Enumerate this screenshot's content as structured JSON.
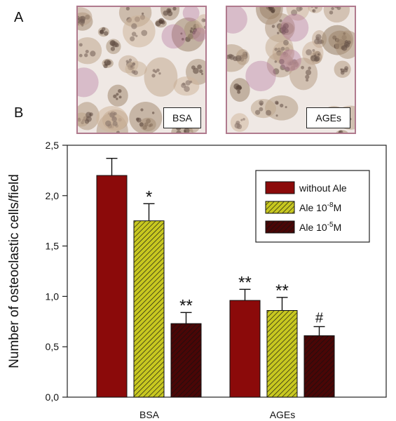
{
  "panels": {
    "a_letter": "A",
    "b_letter": "B",
    "images": [
      {
        "label": "BSA"
      },
      {
        "label": "AGEs"
      }
    ]
  },
  "colors": {
    "without_ale": "#8b0a0a",
    "ale_8": "#c8c820",
    "ale_5": "#4a0606"
  },
  "chart_data": {
    "type": "bar",
    "categories": [
      "BSA",
      "AGEs"
    ],
    "ylabel": "Number of osteoclastic cells/field",
    "ylim": [
      0,
      2.5
    ],
    "yticks": [
      "0,0",
      "0,5",
      "1,0",
      "1,5",
      "2,0",
      "2,5"
    ],
    "legend_position": "top-right",
    "series": [
      {
        "name": "without Ale",
        "values": [
          2.2,
          0.96
        ],
        "errors": [
          0.17,
          0.11
        ],
        "labels": [
          "",
          "**"
        ],
        "color": "#8b0a0a",
        "pattern": "none"
      },
      {
        "name": "Ale 10-8M",
        "name_base": "Ale 10",
        "name_exp": "-8",
        "name_unit": "M",
        "values": [
          1.75,
          0.86
        ],
        "errors": [
          0.17,
          0.13
        ],
        "labels": [
          "*",
          "**"
        ],
        "color": "#c8c820",
        "pattern": "hatch"
      },
      {
        "name": "Ale 10-5M",
        "name_base": "Ale 10",
        "name_exp": "-5",
        "name_unit": "M",
        "values": [
          0.73,
          0.61
        ],
        "errors": [
          0.11,
          0.09
        ],
        "labels": [
          "**",
          "#"
        ],
        "color": "#4a0606",
        "pattern": "hatch"
      }
    ]
  }
}
